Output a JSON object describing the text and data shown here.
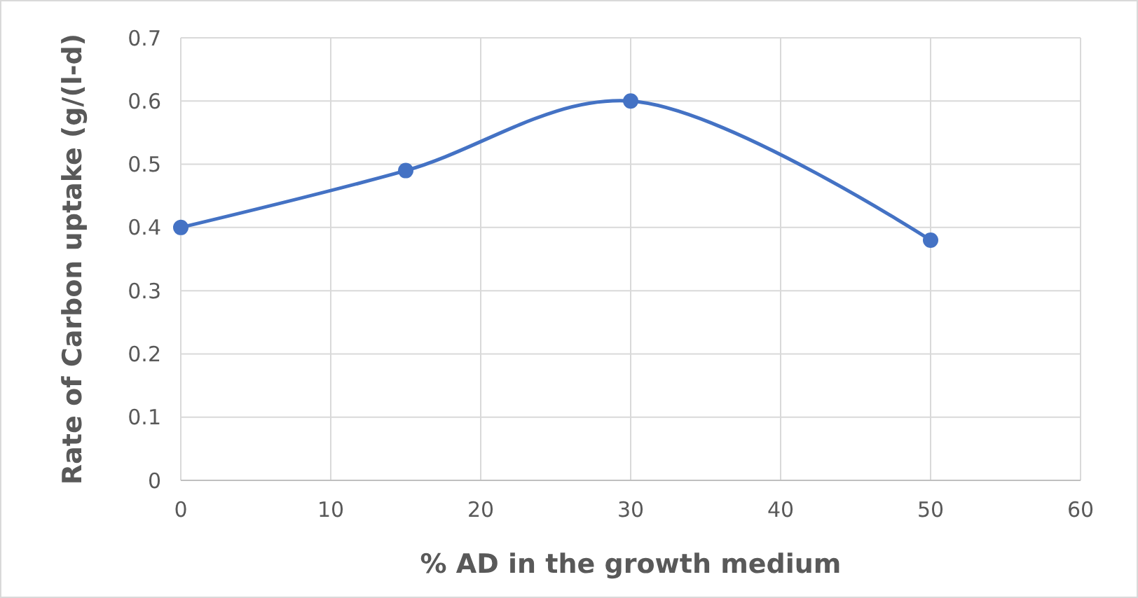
{
  "chart_data": {
    "type": "line",
    "xlabel": "% AD in the growth medium",
    "ylabel": "Rate of Carbon uptake (g/(l-d)",
    "x": [
      0,
      15,
      30,
      50
    ],
    "series": [
      {
        "color": "#4472c4",
        "values": [
          0.4,
          0.49,
          0.6,
          0.38
        ]
      }
    ],
    "xlim": [
      0,
      60
    ],
    "xticks": [
      0,
      10,
      20,
      30,
      40,
      50,
      60
    ],
    "ylim": [
      0,
      0.7
    ],
    "yticks": [
      0,
      0.1,
      0.2,
      0.3,
      0.4,
      0.5,
      0.6,
      0.7
    ],
    "grid": true,
    "marker": "circle",
    "line_style": "solid"
  }
}
